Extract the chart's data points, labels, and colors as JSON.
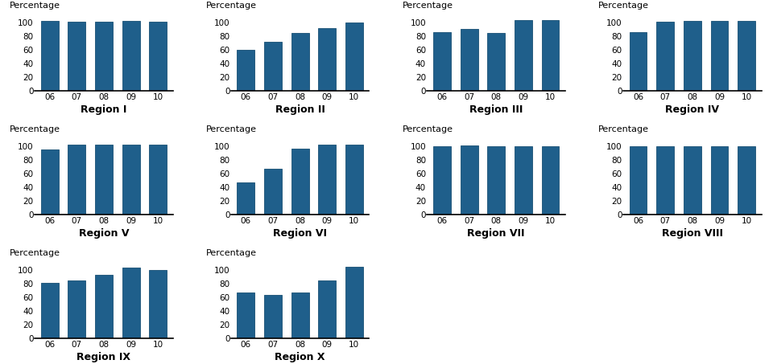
{
  "regions": [
    {
      "name": "Region I",
      "values": [
        103,
        102,
        102,
        103,
        102
      ]
    },
    {
      "name": "Region II",
      "values": [
        60,
        72,
        85,
        92,
        100
      ]
    },
    {
      "name": "Region III",
      "values": [
        86,
        91,
        85,
        104,
        104
      ]
    },
    {
      "name": "Region IV",
      "values": [
        86,
        101,
        103,
        103,
        103
      ]
    },
    {
      "name": "Region V",
      "values": [
        96,
        103,
        103,
        103,
        103
      ]
    },
    {
      "name": "Region VI",
      "values": [
        47,
        68,
        97,
        103,
        103
      ]
    },
    {
      "name": "Region VII",
      "values": [
        101,
        102,
        101,
        101,
        101
      ]
    },
    {
      "name": "Region VIII",
      "values": [
        101,
        101,
        101,
        101,
        101
      ]
    },
    {
      "name": "Region IX",
      "values": [
        82,
        85,
        93,
        104,
        101
      ]
    },
    {
      "name": "Region X",
      "values": [
        68,
        64,
        68,
        85,
        105
      ]
    }
  ],
  "years": [
    "06",
    "07",
    "08",
    "09",
    "10"
  ],
  "bar_color": "#1F5F8B",
  "bar_edge_color": "#174f73",
  "ylabel": "Percentage",
  "yticks": [
    0,
    20,
    40,
    60,
    80,
    100
  ],
  "ylim": [
    0,
    112
  ],
  "tick_fontsize": 7.5,
  "label_fontsize": 8,
  "region_fontsize": 9
}
